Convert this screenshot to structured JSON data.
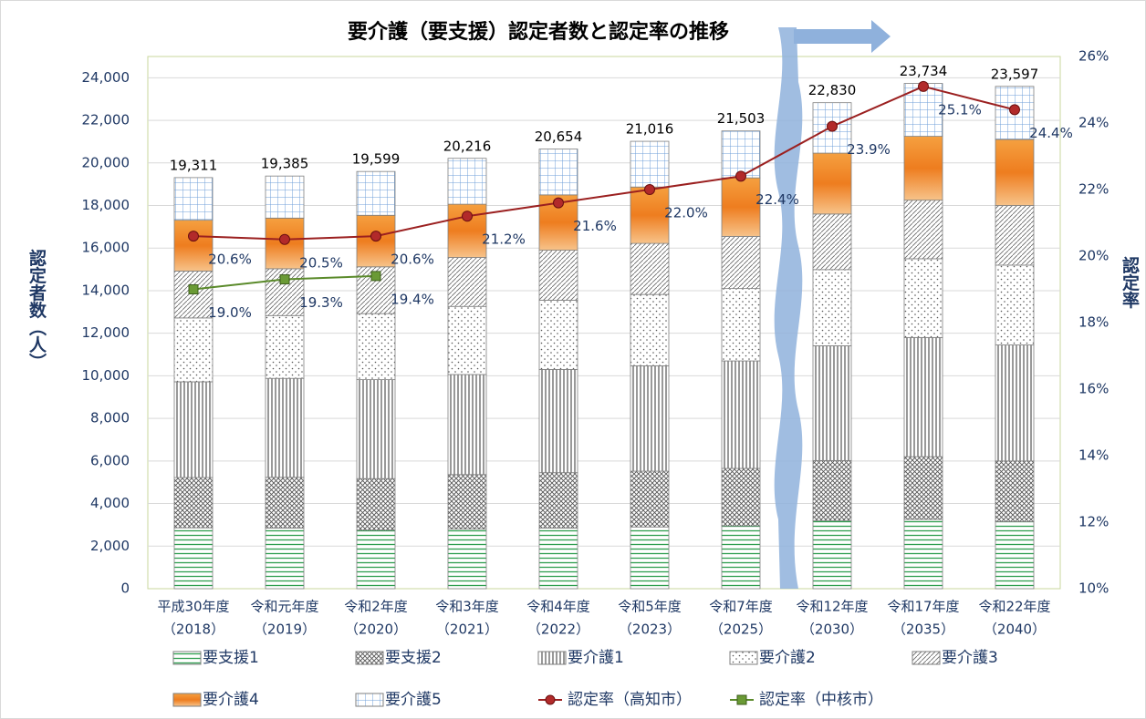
{
  "chart_data": {
    "type": "stacked-bar-line",
    "title": "要介護（要支援）認定者数と認定率の推移",
    "y_label": "認定者数（人）",
    "y2_label": "認定率",
    "categories": [
      [
        "平成30年度",
        "（2018）"
      ],
      [
        "令和元年度",
        "（2019）"
      ],
      [
        "令和2年度",
        "（2020）"
      ],
      [
        "令和3年度",
        "（2021）"
      ],
      [
        "令和4年度",
        "（2022）"
      ],
      [
        "令和5年度",
        "（2023）"
      ],
      [
        "令和7年度",
        "（2025）"
      ],
      [
        "令和12年度",
        "（2030）"
      ],
      [
        "令和17年度",
        "（2035）"
      ],
      [
        "令和22年度",
        "（2040）"
      ]
    ],
    "series": [
      {
        "name": "要支援1",
        "color": "#2e9e4f",
        "pattern": "hlines",
        "values": [
          2860,
          2850,
          2750,
          2800,
          2850,
          2900,
          2950,
          3200,
          3250,
          3150
        ]
      },
      {
        "name": "要支援2",
        "color": "#555555",
        "pattern": "crosshatch",
        "values": [
          2360,
          2380,
          2420,
          2560,
          2600,
          2620,
          2700,
          2820,
          2950,
          2850
        ]
      },
      {
        "name": "要介護1",
        "color": "#333333",
        "pattern": "vlines",
        "values": [
          4500,
          4650,
          4650,
          4700,
          4850,
          4950,
          5050,
          5390,
          5600,
          5450
        ]
      },
      {
        "name": "要介護2",
        "color": "#555555",
        "pattern": "dots",
        "values": [
          3000,
          2950,
          3100,
          3200,
          3250,
          3350,
          3400,
          3580,
          3700,
          3750
        ]
      },
      {
        "name": "要介護3",
        "color": "#555555",
        "pattern": "diag",
        "values": [
          2200,
          2200,
          2200,
          2300,
          2350,
          2400,
          2450,
          2610,
          2750,
          2800
        ]
      },
      {
        "name": "要介護4",
        "color": "#ee7d1f",
        "pattern": "orange",
        "values": [
          2390,
          2380,
          2420,
          2500,
          2600,
          2650,
          2750,
          2860,
          3000,
          3100
        ]
      },
      {
        "name": "要介護5",
        "color": "#6f9fd8",
        "pattern": "grid",
        "values": [
          2001,
          1975,
          2059,
          2156,
          2154,
          2146,
          2203,
          2370,
          2484,
          2497
        ]
      },
      {
        "name": "認定率（高知市）",
        "color": "#9b2020",
        "marker": "circle",
        "axis": "y2",
        "values": [
          20.6,
          20.5,
          20.6,
          21.2,
          21.6,
          22.0,
          22.4,
          23.9,
          25.1,
          24.4
        ],
        "value_labels": [
          "20.6%",
          "20.5%",
          "20.6%",
          "21.2%",
          "21.6%",
          "22.0%",
          "22.4%",
          "23.9%",
          "25.1%",
          "24.4%"
        ]
      },
      {
        "name": "認定率（中核市）",
        "color": "#5a8a2a",
        "marker": "square",
        "axis": "y2",
        "values": [
          19.0,
          19.3,
          19.4,
          null,
          null,
          null,
          null,
          null,
          null,
          null
        ],
        "value_labels": [
          "19.0%",
          "19.3%",
          "19.4%",
          null,
          null,
          null,
          null,
          null,
          null,
          null
        ]
      }
    ],
    "totals": [
      19311,
      19385,
      19599,
      20216,
      20654,
      21016,
      21503,
      22830,
      23734,
      23597
    ],
    "total_labels": [
      "19,311",
      "19,385",
      "19,599",
      "20,216",
      "20,654",
      "21,016",
      "21,503",
      "22,830",
      "23,734",
      "23,597"
    ],
    "ylim": [
      0,
      25000
    ],
    "yticks": [
      0,
      {
        "value": 2000,
        "label": "2,000"
      },
      {
        "value": 4000,
        "label": "4,000"
      },
      {
        "value": 6000,
        "label": "6,000"
      },
      {
        "value": 8000,
        "label": "8,000"
      },
      {
        "value": 10000,
        "label": "10,000"
      },
      {
        "value": 12000,
        "label": "12,000"
      },
      {
        "value": 14000,
        "label": "14,000"
      },
      {
        "value": 16000,
        "label": "16,000"
      },
      {
        "value": 18000,
        "label": "18,000"
      },
      {
        "value": 20000,
        "label": "20,000"
      },
      {
        "value": 22000,
        "label": "22,000"
      },
      {
        "value": 24000,
        "label": "24,000"
      }
    ],
    "y2lim": [
      10,
      26
    ],
    "y2ticks": [
      {
        "value": 10,
        "label": "10%"
      },
      {
        "value": 12,
        "label": "12%"
      },
      {
        "value": 14,
        "label": "14%"
      },
      {
        "value": 16,
        "label": "16%"
      },
      {
        "value": 18,
        "label": "18%"
      },
      {
        "value": 20,
        "label": "20%"
      },
      {
        "value": 22,
        "label": "22%"
      },
      {
        "value": 24,
        "label": "24%"
      },
      {
        "value": 26,
        "label": "26%"
      }
    ],
    "grid": true
  }
}
